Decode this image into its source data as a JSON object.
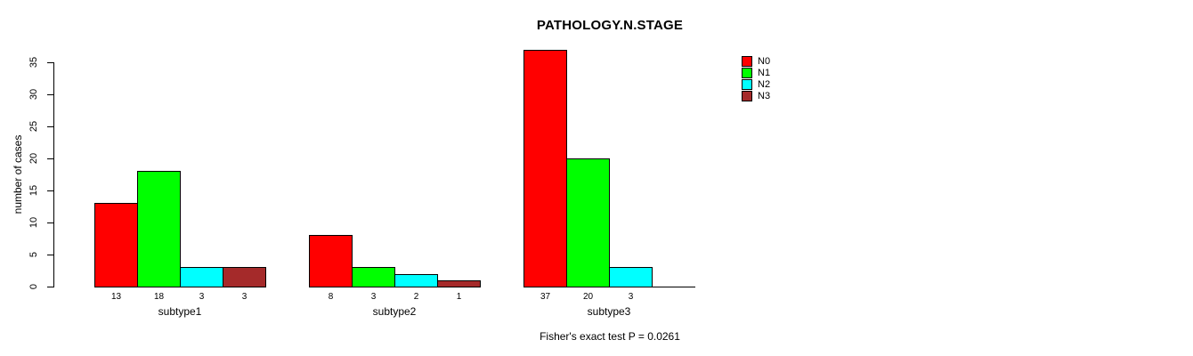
{
  "page": {
    "background": "#ffffff",
    "text_color": "#000000"
  },
  "chart_data": {
    "type": "bar",
    "title": "PATHOLOGY.N.STAGE",
    "xlabel": "",
    "ylabel": "number of cases",
    "ylim": [
      0,
      35
    ],
    "yticks": [
      "0",
      "5",
      "10",
      "15",
      "20",
      "25",
      "30",
      "35"
    ],
    "grid": false,
    "legend_position": "top-right-inside",
    "categories": [
      "subtype1",
      "subtype2",
      "subtype3"
    ],
    "series": [
      {
        "name": "N0",
        "color": "#ff0000",
        "values": [
          13,
          8,
          37
        ]
      },
      {
        "name": "N1",
        "color": "#00ff00",
        "values": [
          18,
          3,
          20
        ]
      },
      {
        "name": "N2",
        "color": "#00ffff",
        "values": [
          3,
          2,
          3
        ]
      },
      {
        "name": "N3",
        "color": "#a52a2a",
        "values": [
          3,
          1,
          0
        ]
      }
    ],
    "bar_value_labels": [
      [
        "13",
        "18",
        "3",
        "3"
      ],
      [
        "8",
        "3",
        "2",
        "1"
      ],
      [
        "37",
        "20",
        "3",
        ""
      ]
    ],
    "annotation": "Fisher's exact test P = 0.0261"
  }
}
